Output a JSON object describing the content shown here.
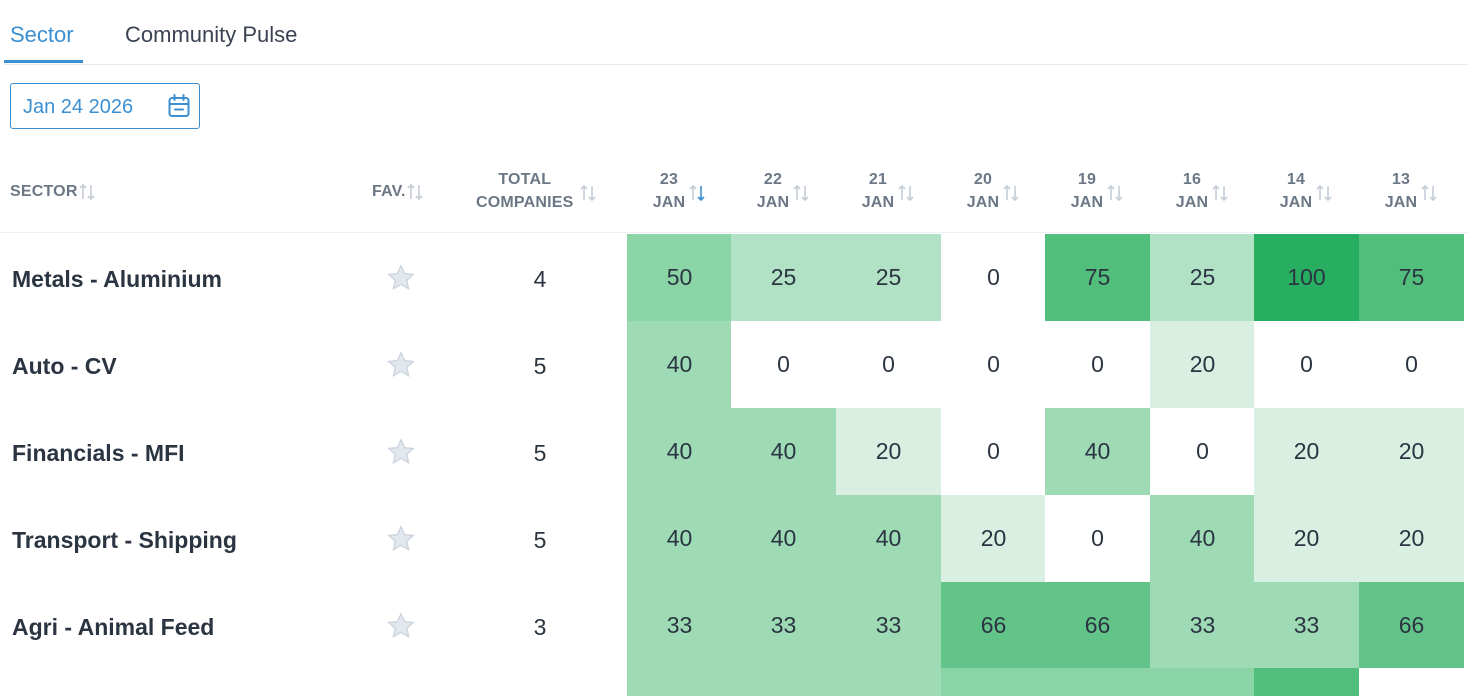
{
  "tabs": [
    {
      "label": "Sector",
      "active": true
    },
    {
      "label": "Community Pulse",
      "active": false
    }
  ],
  "date_picker": {
    "value": "Jan 24 2026",
    "icon": "calendar-icon"
  },
  "columns": {
    "sector": "SECTOR",
    "fav": "FAV.",
    "total_line1": "TOTAL",
    "total_line2": "COMPANIES",
    "dates": [
      {
        "day": "23",
        "month": "JAN",
        "sorted": "desc"
      },
      {
        "day": "22",
        "month": "JAN"
      },
      {
        "day": "21",
        "month": "JAN"
      },
      {
        "day": "20",
        "month": "JAN"
      },
      {
        "day": "19",
        "month": "JAN"
      },
      {
        "day": "16",
        "month": "JAN"
      },
      {
        "day": "14",
        "month": "JAN"
      },
      {
        "day": "13",
        "month": "JAN"
      }
    ]
  },
  "rows": [
    {
      "sector": "Metals - Aluminium",
      "total": "4",
      "values": [
        "50",
        "25",
        "25",
        "0",
        "75",
        "25",
        "100",
        "75"
      ]
    },
    {
      "sector": "Auto - CV",
      "total": "5",
      "values": [
        "40",
        "0",
        "0",
        "0",
        "0",
        "20",
        "0",
        "0"
      ]
    },
    {
      "sector": "Financials - MFI",
      "total": "5",
      "values": [
        "40",
        "40",
        "20",
        "0",
        "40",
        "0",
        "20",
        "20"
      ]
    },
    {
      "sector": "Transport - Shipping",
      "total": "5",
      "values": [
        "40",
        "40",
        "40",
        "20",
        "0",
        "40",
        "20",
        "20"
      ]
    },
    {
      "sector": "Agri - Animal Feed",
      "total": "3",
      "values": [
        "33",
        "33",
        "33",
        "66",
        "66",
        "33",
        "33",
        "66"
      ]
    }
  ],
  "colors": {
    "accent": "#3c8fd0",
    "heat_0": "#ffffff",
    "heat_20": "#d8efe1",
    "heat_25": "#b2e2c5",
    "heat_33": "#9edbb5",
    "heat_40": "#9edbb5",
    "heat_50": "#8ad4a6",
    "heat_66": "#63c48a",
    "heat_75": "#52be7c",
    "heat_100": "#27ae60"
  }
}
